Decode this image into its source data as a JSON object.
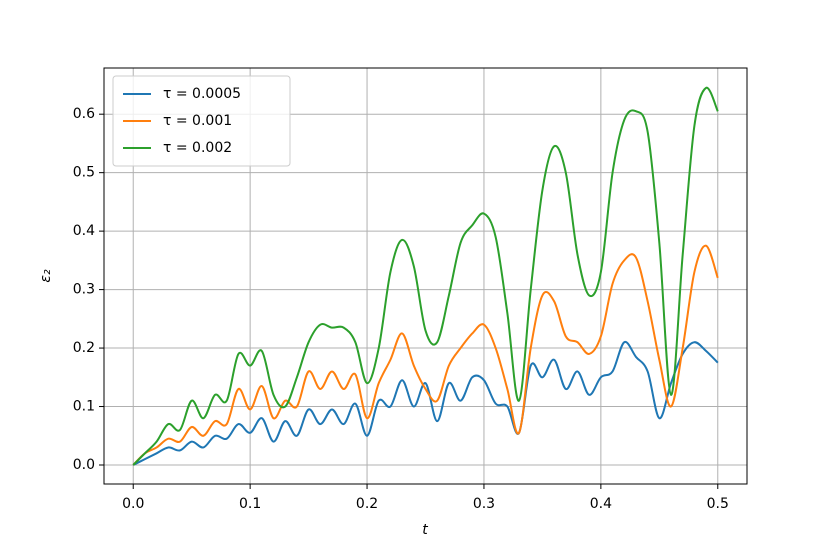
{
  "chart_data": {
    "type": "line",
    "x": [
      0,
      0.01,
      0.02,
      0.03,
      0.04,
      0.05,
      0.06,
      0.07,
      0.08,
      0.09,
      0.1,
      0.11,
      0.12,
      0.13,
      0.14,
      0.15,
      0.16,
      0.17,
      0.18,
      0.19,
      0.2,
      0.21,
      0.22,
      0.23,
      0.24,
      0.25,
      0.26,
      0.27,
      0.28,
      0.29,
      0.3,
      0.31,
      0.32,
      0.33,
      0.34,
      0.35,
      0.36,
      0.37,
      0.38,
      0.39,
      0.4,
      0.41,
      0.42,
      0.43,
      0.44,
      0.45,
      0.46,
      0.47,
      0.48,
      0.49,
      0.5
    ],
    "series": [
      {
        "name": "τ = 0.0005",
        "color": "#1f77b4",
        "values": [
          0,
          0.01,
          0.02,
          0.03,
          0.025,
          0.04,
          0.03,
          0.05,
          0.045,
          0.07,
          0.055,
          0.08,
          0.04,
          0.075,
          0.05,
          0.095,
          0.07,
          0.095,
          0.07,
          0.105,
          0.05,
          0.11,
          0.1,
          0.145,
          0.1,
          0.14,
          0.075,
          0.14,
          0.11,
          0.15,
          0.145,
          0.105,
          0.1,
          0.055,
          0.17,
          0.15,
          0.18,
          0.13,
          0.16,
          0.12,
          0.15,
          0.16,
          0.21,
          0.185,
          0.16,
          0.08,
          0.14,
          0.19,
          0.21,
          0.195,
          0.175
        ]
      },
      {
        "name": "τ = 0.001",
        "color": "#ff7f0e",
        "values": [
          0,
          0.02,
          0.03,
          0.045,
          0.04,
          0.065,
          0.05,
          0.075,
          0.07,
          0.13,
          0.095,
          0.135,
          0.08,
          0.11,
          0.1,
          0.16,
          0.13,
          0.16,
          0.13,
          0.155,
          0.08,
          0.14,
          0.18,
          0.225,
          0.17,
          0.13,
          0.11,
          0.17,
          0.2,
          0.225,
          0.24,
          0.2,
          0.13,
          0.055,
          0.2,
          0.29,
          0.28,
          0.22,
          0.21,
          0.19,
          0.22,
          0.31,
          0.35,
          0.355,
          0.28,
          0.18,
          0.1,
          0.2,
          0.33,
          0.375,
          0.32
        ]
      },
      {
        "name": "τ = 0.002",
        "color": "#2ca02c",
        "values": [
          0,
          0.02,
          0.04,
          0.07,
          0.06,
          0.11,
          0.08,
          0.12,
          0.11,
          0.19,
          0.17,
          0.195,
          0.12,
          0.1,
          0.15,
          0.21,
          0.24,
          0.235,
          0.235,
          0.21,
          0.14,
          0.2,
          0.33,
          0.385,
          0.34,
          0.23,
          0.21,
          0.29,
          0.38,
          0.41,
          0.43,
          0.39,
          0.26,
          0.11,
          0.3,
          0.47,
          0.545,
          0.5,
          0.36,
          0.29,
          0.33,
          0.5,
          0.59,
          0.605,
          0.57,
          0.38,
          0.12,
          0.36,
          0.58,
          0.645,
          0.605
        ]
      }
    ],
    "xlabel": "t",
    "ylabel": "ε₂",
    "xlim": [
      -0.025,
      0.525
    ],
    "ylim": [
      -0.0325,
      0.679
    ],
    "xticks": [
      {
        "value": 0,
        "label": "0.0"
      },
      0.1,
      0.2,
      0.3,
      0.4,
      0.5
    ],
    "yticks": [
      {
        "value": 0,
        "label": "0.0"
      },
      0.1,
      0.2,
      0.3,
      0.4,
      0.5,
      0.6
    ],
    "grid": true,
    "legend": "upper-left"
  }
}
